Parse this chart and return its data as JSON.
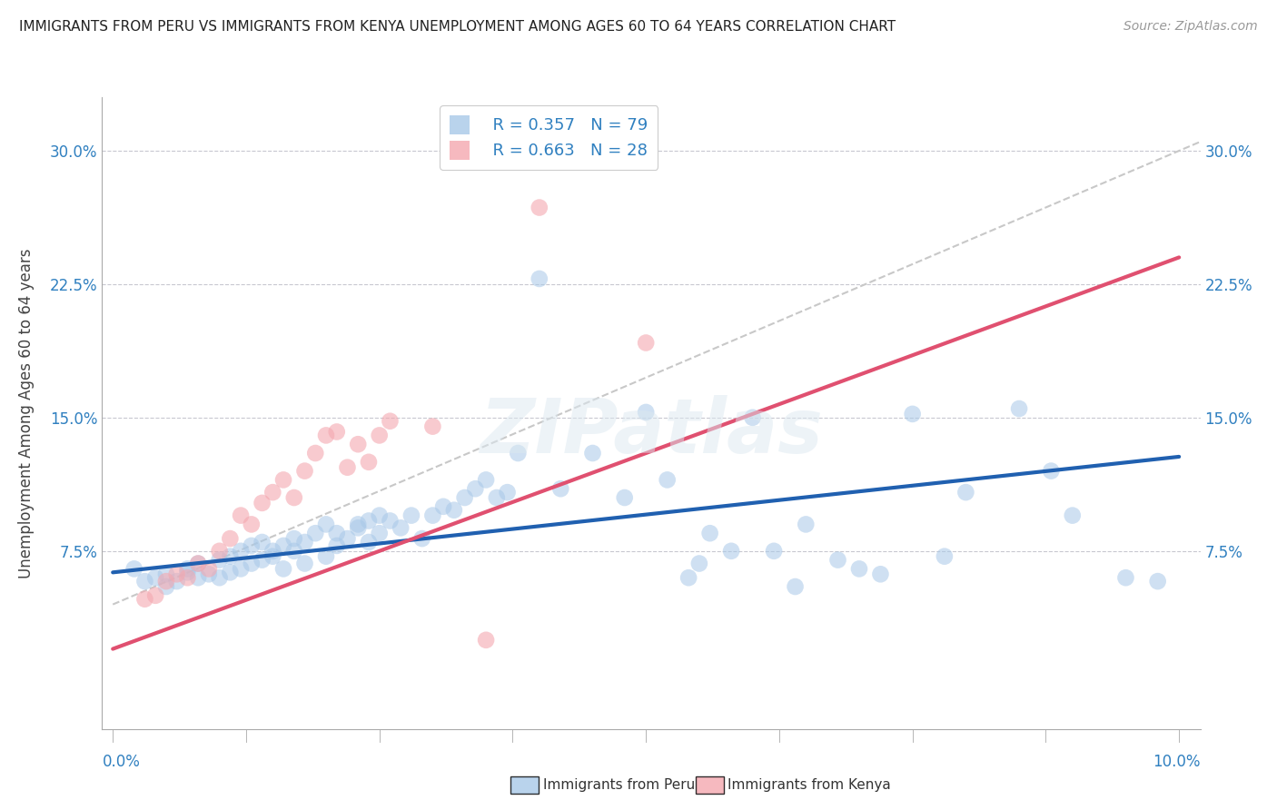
{
  "title": "IMMIGRANTS FROM PERU VS IMMIGRANTS FROM KENYA UNEMPLOYMENT AMONG AGES 60 TO 64 YEARS CORRELATION CHART",
  "source": "Source: ZipAtlas.com",
  "ylabel": "Unemployment Among Ages 60 to 64 years",
  "ytick_labels": [
    "",
    "7.5%",
    "15.0%",
    "22.5%",
    "30.0%"
  ],
  "ytick_values": [
    0.0,
    0.075,
    0.15,
    0.225,
    0.3
  ],
  "xlim": [
    -0.001,
    0.102
  ],
  "ylim": [
    -0.025,
    0.33
  ],
  "legend_peru_r": "R = 0.357",
  "legend_peru_n": "N = 79",
  "legend_kenya_r": "R = 0.663",
  "legend_kenya_n": "N = 28",
  "peru_color": "#a8c8e8",
  "kenya_color": "#f4a8b0",
  "peru_line_color": "#2060b0",
  "kenya_line_color": "#e05070",
  "trend_line_color": "#c8c8c8",
  "watermark": "ZIPatlas",
  "peru_scatter_x": [
    0.002,
    0.003,
    0.004,
    0.005,
    0.005,
    0.006,
    0.007,
    0.007,
    0.008,
    0.008,
    0.009,
    0.01,
    0.01,
    0.011,
    0.011,
    0.012,
    0.012,
    0.013,
    0.013,
    0.014,
    0.014,
    0.015,
    0.015,
    0.016,
    0.016,
    0.017,
    0.017,
    0.018,
    0.018,
    0.019,
    0.02,
    0.02,
    0.021,
    0.021,
    0.022,
    0.023,
    0.023,
    0.024,
    0.024,
    0.025,
    0.025,
    0.026,
    0.027,
    0.028,
    0.029,
    0.03,
    0.031,
    0.032,
    0.033,
    0.034,
    0.035,
    0.036,
    0.037,
    0.038,
    0.04,
    0.042,
    0.045,
    0.048,
    0.05,
    0.052,
    0.054,
    0.055,
    0.056,
    0.058,
    0.06,
    0.062,
    0.064,
    0.065,
    0.068,
    0.07,
    0.072,
    0.075,
    0.078,
    0.08,
    0.085,
    0.088,
    0.09,
    0.095,
    0.098
  ],
  "peru_scatter_y": [
    0.065,
    0.058,
    0.06,
    0.055,
    0.062,
    0.058,
    0.063,
    0.065,
    0.06,
    0.068,
    0.062,
    0.06,
    0.07,
    0.063,
    0.072,
    0.065,
    0.075,
    0.068,
    0.078,
    0.07,
    0.08,
    0.072,
    0.075,
    0.065,
    0.078,
    0.075,
    0.082,
    0.068,
    0.08,
    0.085,
    0.072,
    0.09,
    0.078,
    0.085,
    0.082,
    0.09,
    0.088,
    0.08,
    0.092,
    0.085,
    0.095,
    0.092,
    0.088,
    0.095,
    0.082,
    0.095,
    0.1,
    0.098,
    0.105,
    0.11,
    0.115,
    0.105,
    0.108,
    0.13,
    0.228,
    0.11,
    0.13,
    0.105,
    0.153,
    0.115,
    0.06,
    0.068,
    0.085,
    0.075,
    0.15,
    0.075,
    0.055,
    0.09,
    0.07,
    0.065,
    0.062,
    0.152,
    0.072,
    0.108,
    0.155,
    0.12,
    0.095,
    0.06,
    0.058
  ],
  "kenya_scatter_x": [
    0.003,
    0.004,
    0.005,
    0.006,
    0.007,
    0.008,
    0.009,
    0.01,
    0.011,
    0.012,
    0.013,
    0.014,
    0.015,
    0.016,
    0.017,
    0.018,
    0.019,
    0.02,
    0.021,
    0.022,
    0.023,
    0.024,
    0.025,
    0.026,
    0.03,
    0.035,
    0.04,
    0.05
  ],
  "kenya_scatter_y": [
    0.048,
    0.05,
    0.058,
    0.062,
    0.06,
    0.068,
    0.065,
    0.075,
    0.082,
    0.095,
    0.09,
    0.102,
    0.108,
    0.115,
    0.105,
    0.12,
    0.13,
    0.14,
    0.142,
    0.122,
    0.135,
    0.125,
    0.14,
    0.148,
    0.145,
    0.025,
    0.268,
    0.192
  ],
  "peru_trend_x": [
    0.0,
    0.1
  ],
  "peru_trend_y": [
    0.063,
    0.128
  ],
  "kenya_trend_x": [
    0.0,
    0.1
  ],
  "kenya_trend_y": [
    0.02,
    0.24
  ],
  "diag_trend_x": [
    0.0,
    0.102
  ],
  "diag_trend_y": [
    0.045,
    0.305
  ]
}
